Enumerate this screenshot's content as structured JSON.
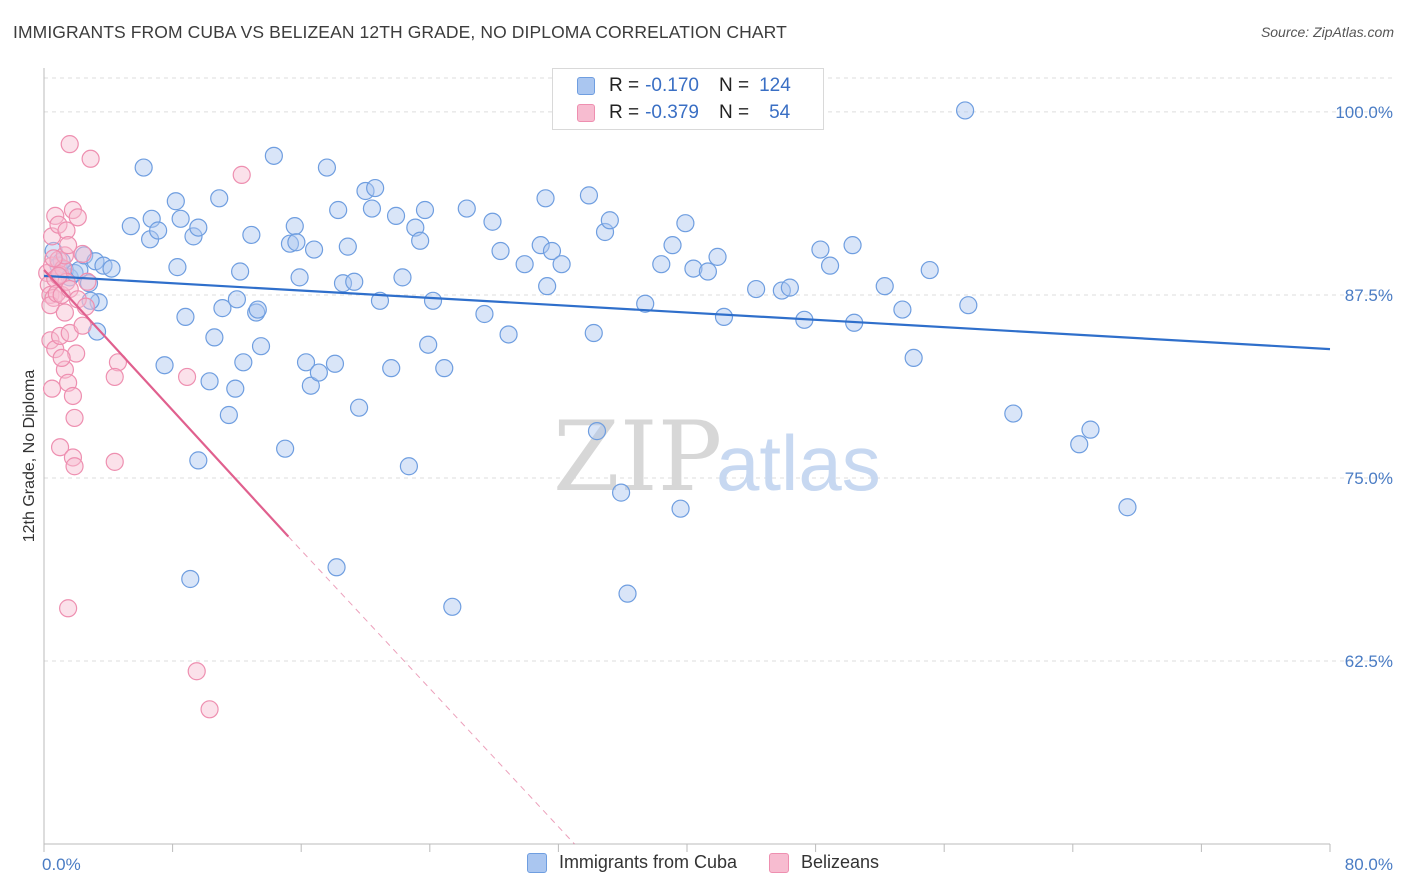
{
  "title": "IMMIGRANTS FROM CUBA VS BELIZEAN 12TH GRADE, NO DIPLOMA CORRELATION CHART",
  "source": "Source: ZipAtlas.com",
  "watermark": {
    "zip": "ZIP",
    "atlas": "atlas"
  },
  "colors": {
    "cuba_fill": "#aac6f0",
    "cuba_stroke": "#6f9ee0",
    "cuba_line": "#2f6fcb",
    "bel_fill": "#f7bcd0",
    "bel_stroke": "#ee8fb0",
    "bel_line": "#e0608e"
  },
  "legend_top": {
    "rows": [
      {
        "r_label": "R =",
        "r_value": "-0.170",
        "n_label": "N =",
        "n_value": "124"
      },
      {
        "r_label": "R =",
        "r_value": "-0.379",
        "n_label": "N =",
        "n_value": "54"
      }
    ]
  },
  "legend_bottom": [
    "Immigrants from Cuba",
    "Belizeans"
  ],
  "chart_data": {
    "type": "scatter",
    "ylabel": "12th Grade, No Diploma",
    "xlim": [
      0,
      80
    ],
    "ylim": [
      50,
      103
    ],
    "x_tick_labels": [
      "0.0%",
      "80.0%"
    ],
    "y_ticks": [
      100,
      87.5,
      75,
      62.5
    ],
    "y_tick_labels": [
      "100.0%",
      "87.5%",
      "75.0%",
      "62.5%"
    ],
    "grid": "horizontal dashed",
    "legend_placement": "top-center and bottom",
    "series": [
      {
        "name": "Immigrants from Cuba",
        "trend": {
          "x": [
            0,
            80
          ],
          "y": [
            88.8,
            83.8
          ]
        },
        "points": [
          [
            0.6,
            90.5
          ],
          [
            0.9,
            89.5
          ],
          [
            1.1,
            89.8
          ],
          [
            1.3,
            89.2
          ],
          [
            1.6,
            88.7
          ],
          [
            1.9,
            89.0
          ],
          [
            2.2,
            89.2
          ],
          [
            2.5,
            90.2
          ],
          [
            2.8,
            88.3
          ],
          [
            3.2,
            89.8
          ],
          [
            3.4,
            87.0
          ],
          [
            3.7,
            89.5
          ],
          [
            4.2,
            89.3
          ],
          [
            2.9,
            87.1
          ],
          [
            3.3,
            85.0
          ],
          [
            6.2,
            96.2
          ],
          [
            5.4,
            92.2
          ],
          [
            6.6,
            91.3
          ],
          [
            6.7,
            92.7
          ],
          [
            7.1,
            91.9
          ],
          [
            7.5,
            82.7
          ],
          [
            8.2,
            93.9
          ],
          [
            8.3,
            89.4
          ],
          [
            8.5,
            92.7
          ],
          [
            8.8,
            86.0
          ],
          [
            9.3,
            91.5
          ],
          [
            9.6,
            92.1
          ],
          [
            10.3,
            81.6
          ],
          [
            10.6,
            84.6
          ],
          [
            10.9,
            94.1
          ],
          [
            11.1,
            86.6
          ],
          [
            11.5,
            79.3
          ],
          [
            12.0,
            87.2
          ],
          [
            11.9,
            81.1
          ],
          [
            12.2,
            89.1
          ],
          [
            12.4,
            82.9
          ],
          [
            12.9,
            91.6
          ],
          [
            13.2,
            86.3
          ],
          [
            13.3,
            86.5
          ],
          [
            13.5,
            84.0
          ],
          [
            14.3,
            97.0
          ],
          [
            15.0,
            77.0
          ],
          [
            15.3,
            91.0
          ],
          [
            15.6,
            92.2
          ],
          [
            15.7,
            91.1
          ],
          [
            15.9,
            88.7
          ],
          [
            16.3,
            82.9
          ],
          [
            16.6,
            81.3
          ],
          [
            16.8,
            90.6
          ],
          [
            17.1,
            82.2
          ],
          [
            17.6,
            96.2
          ],
          [
            18.1,
            82.8
          ],
          [
            18.3,
            93.3
          ],
          [
            18.6,
            88.3
          ],
          [
            18.9,
            90.8
          ],
          [
            19.3,
            88.4
          ],
          [
            19.6,
            79.8
          ],
          [
            20.0,
            94.6
          ],
          [
            20.4,
            93.4
          ],
          [
            20.6,
            94.8
          ],
          [
            20.9,
            87.1
          ],
          [
            21.6,
            82.5
          ],
          [
            21.9,
            92.9
          ],
          [
            22.3,
            88.7
          ],
          [
            22.7,
            75.8
          ],
          [
            23.1,
            92.1
          ],
          [
            23.4,
            91.2
          ],
          [
            23.7,
            93.3
          ],
          [
            23.9,
            84.1
          ],
          [
            24.2,
            87.1
          ],
          [
            24.9,
            82.5
          ],
          [
            26.3,
            93.4
          ],
          [
            27.4,
            86.2
          ],
          [
            27.9,
            92.5
          ],
          [
            28.4,
            90.5
          ],
          [
            28.9,
            84.8
          ],
          [
            29.9,
            89.6
          ],
          [
            30.9,
            90.9
          ],
          [
            31.2,
            94.1
          ],
          [
            31.3,
            88.1
          ],
          [
            31.6,
            90.5
          ],
          [
            32.2,
            89.6
          ],
          [
            33.9,
            94.3
          ],
          [
            34.2,
            84.9
          ],
          [
            34.4,
            78.2
          ],
          [
            34.9,
            91.8
          ],
          [
            35.2,
            92.6
          ],
          [
            35.9,
            74.0
          ],
          [
            37.4,
            86.9
          ],
          [
            38.4,
            89.6
          ],
          [
            39.1,
            90.9
          ],
          [
            39.6,
            72.9
          ],
          [
            39.9,
            92.4
          ],
          [
            40.4,
            89.3
          ],
          [
            41.3,
            89.1
          ],
          [
            41.9,
            90.1
          ],
          [
            42.3,
            86.0
          ],
          [
            44.3,
            87.9
          ],
          [
            45.9,
            87.8
          ],
          [
            46.4,
            88.0
          ],
          [
            47.3,
            85.8
          ],
          [
            48.3,
            90.6
          ],
          [
            48.9,
            89.5
          ],
          [
            50.3,
            90.9
          ],
          [
            50.4,
            85.6
          ],
          [
            52.3,
            88.1
          ],
          [
            53.4,
            86.5
          ],
          [
            54.1,
            83.2
          ],
          [
            55.1,
            89.2
          ],
          [
            57.5,
            86.8
          ],
          [
            57.3,
            100.1
          ],
          [
            60.3,
            79.4
          ],
          [
            64.4,
            77.3
          ],
          [
            65.1,
            78.3
          ],
          [
            67.4,
            73.0
          ],
          [
            18.2,
            68.9
          ],
          [
            9.1,
            68.1
          ],
          [
            25.4,
            66.2
          ],
          [
            36.3,
            67.1
          ],
          [
            9.6,
            76.2
          ]
        ]
      },
      {
        "name": "Belizeans",
        "trend": {
          "x": [
            0,
            15.2
          ],
          "y": [
            89.2,
            71.0
          ]
        },
        "trend_extension": {
          "x": [
            15.2,
            33.0
          ],
          "y": [
            71.0,
            50.0
          ]
        },
        "points": [
          [
            0.2,
            89.0
          ],
          [
            0.3,
            88.2
          ],
          [
            0.4,
            87.5
          ],
          [
            0.5,
            89.5
          ],
          [
            0.6,
            87.3
          ],
          [
            0.4,
            86.8
          ],
          [
            0.7,
            88.6
          ],
          [
            0.8,
            87.6
          ],
          [
            0.9,
            89.9
          ],
          [
            1.0,
            88.9
          ],
          [
            1.1,
            87.5
          ],
          [
            1.2,
            89.3
          ],
          [
            1.3,
            90.2
          ],
          [
            1.4,
            88.4
          ],
          [
            1.6,
            87.9
          ],
          [
            0.5,
            91.5
          ],
          [
            0.7,
            92.9
          ],
          [
            0.9,
            92.3
          ],
          [
            1.4,
            91.9
          ],
          [
            1.5,
            90.9
          ],
          [
            1.8,
            93.3
          ],
          [
            2.1,
            92.8
          ],
          [
            2.4,
            90.3
          ],
          [
            2.7,
            88.4
          ],
          [
            1.6,
            97.8
          ],
          [
            2.9,
            96.8
          ],
          [
            0.4,
            84.4
          ],
          [
            0.7,
            83.8
          ],
          [
            1.0,
            84.7
          ],
          [
            1.3,
            82.4
          ],
          [
            1.6,
            84.9
          ],
          [
            2.0,
            83.5
          ],
          [
            2.4,
            85.4
          ],
          [
            1.3,
            86.3
          ],
          [
            2.1,
            87.2
          ],
          [
            0.5,
            81.1
          ],
          [
            1.1,
            83.2
          ],
          [
            1.5,
            81.5
          ],
          [
            1.8,
            80.6
          ],
          [
            1.9,
            79.1
          ],
          [
            1.0,
            77.1
          ],
          [
            1.8,
            76.4
          ],
          [
            1.9,
            75.8
          ],
          [
            4.6,
            82.9
          ],
          [
            4.4,
            81.9
          ],
          [
            4.4,
            76.1
          ],
          [
            8.9,
            81.9
          ],
          [
            12.3,
            95.7
          ],
          [
            1.5,
            66.1
          ],
          [
            9.5,
            61.8
          ],
          [
            10.3,
            59.2
          ],
          [
            2.6,
            86.7
          ],
          [
            0.9,
            88.8
          ],
          [
            0.6,
            90.0
          ]
        ]
      }
    ]
  }
}
